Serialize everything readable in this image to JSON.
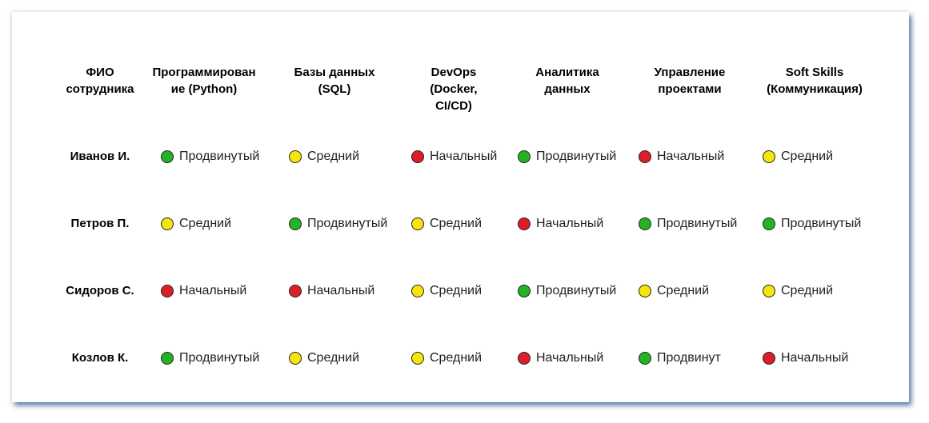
{
  "headers": [
    "ФИО сотрудника",
    "Программирование (Python)",
    "Базы данных (SQL)",
    "DevOps (Docker, CI/CD)",
    "Аналитика данных",
    "Управление проектами",
    "Soft Skills (Коммуникация)"
  ],
  "header_lines": [
    [
      "ФИО",
      "сотрудника"
    ],
    [
      "Программирован",
      "ие (Python)"
    ],
    [
      "Базы данных",
      "(SQL)"
    ],
    [
      "DevOps",
      "(Docker,",
      "CI/CD)"
    ],
    [
      "Аналитика",
      "данных"
    ],
    [
      "Управление",
      "проектами"
    ],
    [
      "Soft Skills",
      "(Коммуникация)"
    ]
  ],
  "level_colors": {
    "advanced": "#22b422",
    "medium": "#f5e60a",
    "beginner": "#dc1e28"
  },
  "rows": [
    {
      "name": "Иванов И.",
      "cells": [
        {
          "label": "Продвинутый",
          "level": "advanced"
        },
        {
          "label": "Средний",
          "level": "medium"
        },
        {
          "label": "Начальный",
          "level": "beginner"
        },
        {
          "label": "Продвинутый",
          "level": "advanced"
        },
        {
          "label": "Начальный",
          "level": "beginner"
        },
        {
          "label": "Средний",
          "level": "medium"
        }
      ]
    },
    {
      "name": "Петров П.",
      "cells": [
        {
          "label": "Средний",
          "level": "medium"
        },
        {
          "label": "Продвинутый",
          "level": "advanced"
        },
        {
          "label": "Средний",
          "level": "medium"
        },
        {
          "label": "Начальный",
          "level": "beginner"
        },
        {
          "label": "Продвинутый",
          "level": "advanced"
        },
        {
          "label": "Продвинутый",
          "level": "advanced"
        }
      ]
    },
    {
      "name": "Сидоров С.",
      "cells": [
        {
          "label": "Начальный",
          "level": "beginner"
        },
        {
          "label": "Начальный",
          "level": "beginner"
        },
        {
          "label": "Средний",
          "level": "medium"
        },
        {
          "label": "Продвинутый",
          "level": "advanced"
        },
        {
          "label": "Средний",
          "level": "medium"
        },
        {
          "label": "Средний",
          "level": "medium"
        }
      ]
    },
    {
      "name": "Козлов К.",
      "cells": [
        {
          "label": "Продвинутый",
          "level": "advanced"
        },
        {
          "label": "Средний",
          "level": "medium"
        },
        {
          "label": "Средний",
          "level": "medium"
        },
        {
          "label": "Начальный",
          "level": "beginner"
        },
        {
          "label": "Продвинут",
          "level": "advanced"
        },
        {
          "label": "Начальный",
          "level": "beginner"
        }
      ]
    }
  ]
}
